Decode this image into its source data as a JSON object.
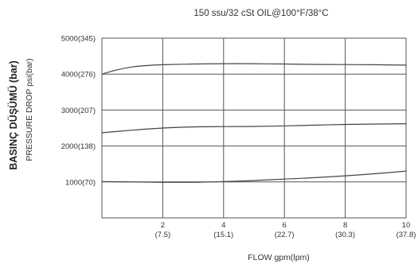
{
  "chart_data": {
    "type": "line",
    "title": "150 ssu/32 cSt OIL@100°F/38°C",
    "xlabel": "FLOW gpm(lpm)",
    "ylabel": "PRESSURE DROP psi(bar)",
    "ylabel_secondary": "BASINÇ DÜŞÜMÜ (bar)",
    "xlim": [
      0,
      10
    ],
    "ylim": [
      0,
      5000
    ],
    "grid": true,
    "x_ticks": [
      {
        "value": 2,
        "label": "2",
        "sublabel": "(7.5)"
      },
      {
        "value": 4,
        "label": "4",
        "sublabel": "(15.1)"
      },
      {
        "value": 6,
        "label": "6",
        "sublabel": "(22.7)"
      },
      {
        "value": 8,
        "label": "8",
        "sublabel": "(30.3)"
      },
      {
        "value": 10,
        "label": "10",
        "sublabel": "(37.8)"
      }
    ],
    "y_ticks": [
      {
        "value": 1000,
        "label": "1000(70)"
      },
      {
        "value": 2000,
        "label": "2000(138)"
      },
      {
        "value": 3000,
        "label": "3000(207)"
      },
      {
        "value": 4000,
        "label": "4000(276)"
      },
      {
        "value": 5000,
        "label": "5000(345)"
      }
    ],
    "series": [
      {
        "x": [
          0,
          0.5,
          1,
          1.5,
          2,
          3,
          4,
          5,
          6,
          7,
          8,
          9,
          10
        ],
        "y": [
          4000,
          4120,
          4200,
          4240,
          4260,
          4280,
          4290,
          4290,
          4280,
          4270,
          4265,
          4260,
          4250
        ]
      },
      {
        "x": [
          0,
          1,
          2,
          3,
          4,
          5,
          6,
          7,
          8,
          9,
          10
        ],
        "y": [
          2370,
          2440,
          2500,
          2530,
          2540,
          2545,
          2560,
          2580,
          2600,
          2610,
          2620
        ]
      },
      {
        "x": [
          0,
          1,
          2,
          3,
          4,
          5,
          6,
          7,
          8,
          9,
          10
        ],
        "y": [
          1010,
          1000,
          990,
          990,
          1010,
          1040,
          1080,
          1120,
          1170,
          1230,
          1300
        ]
      }
    ]
  }
}
